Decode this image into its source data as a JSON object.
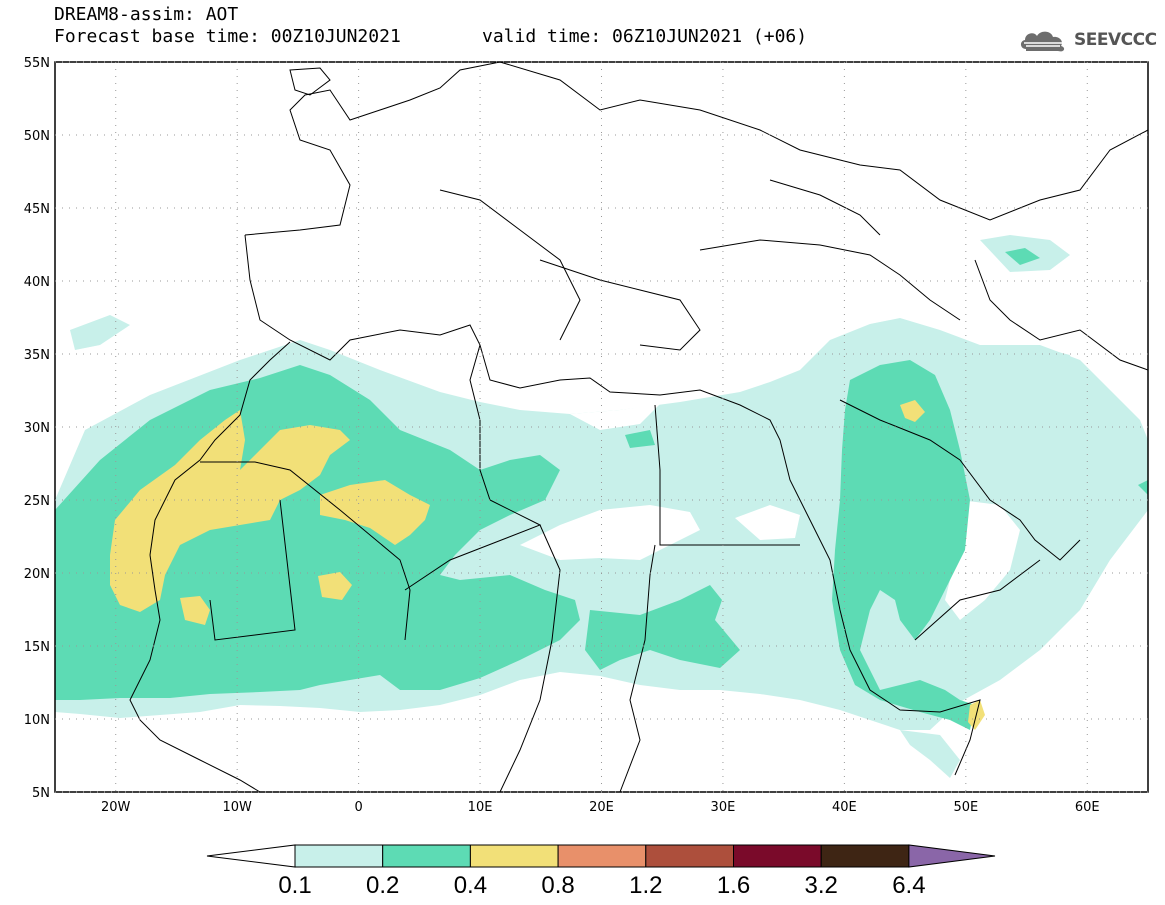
{
  "header": {
    "model_line": "DREAM8-assim: AOT",
    "base_time_line": "Forecast base time: 00Z10JUN2021",
    "valid_time_line": "valid time: 06Z10JUN2021 (+06)"
  },
  "logo": {
    "text": "SEEVCCC",
    "icon": "cloud-icon"
  },
  "map": {
    "lat_labels": [
      "55N",
      "50N",
      "45N",
      "40N",
      "35N",
      "30N",
      "25N",
      "20N",
      "15N",
      "10N",
      "5N"
    ],
    "lon_labels": [
      "20W",
      "10W",
      "0",
      "10E",
      "20E",
      "30E",
      "40E",
      "50E",
      "60E"
    ],
    "lat_range": [
      5,
      55
    ],
    "lon_range": [
      -25,
      65
    ]
  },
  "colorbar": {
    "labels": [
      "0.1",
      "0.2",
      "0.4",
      "0.8",
      "1.2",
      "1.6",
      "3.2",
      "6.4"
    ],
    "colors": [
      "#ffffff",
      "#c8f0ea",
      "#5ddbb4",
      "#f2e078",
      "#e8906a",
      "#ad4f3c",
      "#7a0a2a",
      "#3e2514",
      "#8a66a8"
    ]
  }
}
